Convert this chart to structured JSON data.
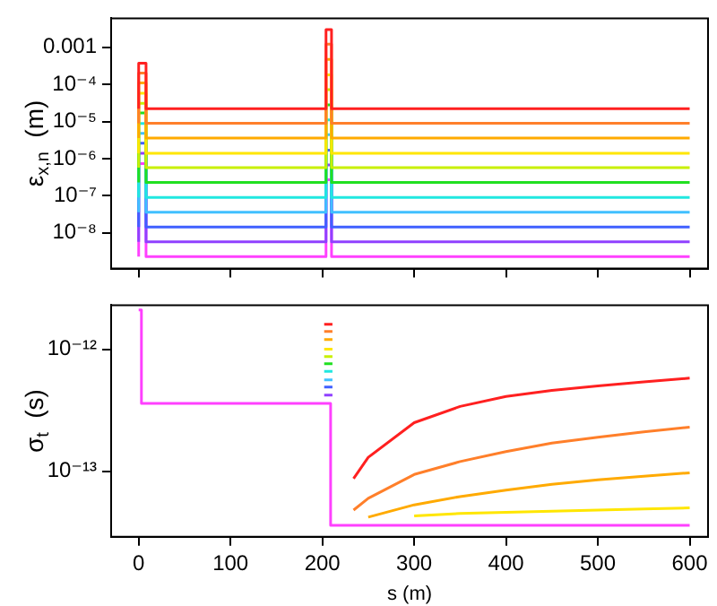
{
  "chart_data": [
    {
      "type": "line",
      "ylabel": "ε$_{x,n}$  (m)",
      "xlim": [
        -30,
        620
      ],
      "xticks": [
        0,
        100,
        200,
        300,
        400,
        500,
        600
      ],
      "ylim": [
        1.1e-09,
        0.006
      ],
      "log": "y",
      "tick_labels": "y",
      "grid": false,
      "legend": false,
      "marker": "none",
      "line_style": "solid",
      "yticks": [
        0.001,
        {
          "value": 0.0001,
          "label": "10⁻⁴"
        },
        {
          "value": 1e-05,
          "label": "10⁻⁵"
        },
        {
          "value": 1e-06,
          "label": "10⁻⁶"
        },
        {
          "value": 1e-07,
          "label": "10⁻⁷"
        },
        {
          "value": 1e-08,
          "label": "10⁻⁸"
        }
      ],
      "series": [
        {
          "color": "#ff2020",
          "x": [
            0,
            0,
            8,
            8,
            204,
            204,
            210,
            210,
            600
          ],
          "values": [
            2.2e-05,
            0.00037,
            0.00037,
            2.2e-05,
            2.2e-05,
            0.003,
            0.003,
            2.2e-05,
            2.2e-05
          ]
        },
        {
          "color": "#ff7f2a",
          "x": [
            0,
            0,
            8,
            8,
            204,
            204,
            210,
            210,
            600
          ],
          "values": [
            9e-06,
            0.0002,
            0.0002,
            9e-06,
            9e-06,
            0.0012,
            0.0012,
            9e-06,
            9e-06
          ]
        },
        {
          "color": "#ffaa00",
          "x": [
            0,
            0,
            8,
            8,
            204,
            204,
            210,
            210,
            600
          ],
          "values": [
            3.6e-06,
            0.00011,
            0.00011,
            3.6e-06,
            3.6e-06,
            0.00047,
            0.00047,
            3.6e-06,
            3.6e-06
          ]
        },
        {
          "color": "#ffe600",
          "x": [
            0,
            0,
            8,
            8,
            204,
            204,
            210,
            210,
            600
          ],
          "values": [
            1.4e-06,
            5.8e-05,
            5.8e-05,
            1.4e-06,
            1.4e-06,
            0.00018,
            0.00018,
            1.4e-06,
            1.4e-06
          ]
        },
        {
          "color": "#c8f000",
          "x": [
            0,
            0,
            8,
            8,
            204,
            204,
            210,
            210,
            600
          ],
          "values": [
            5.7e-07,
            3.1e-05,
            3.1e-05,
            5.7e-07,
            5.7e-07,
            7.2e-05,
            7.2e-05,
            5.7e-07,
            5.7e-07
          ]
        },
        {
          "color": "#20e020",
          "x": [
            0,
            0,
            8,
            8,
            204,
            204,
            210,
            210,
            600
          ],
          "values": [
            2.3e-07,
            1.7e-05,
            1.7e-05,
            2.3e-07,
            2.3e-07,
            2.8e-05,
            2.8e-05,
            2.3e-07,
            2.3e-07
          ]
        },
        {
          "color": "#20e8e0",
          "x": [
            0,
            0,
            8,
            8,
            204,
            204,
            210,
            210,
            600
          ],
          "values": [
            9e-08,
            8.9e-06,
            8.9e-06,
            9e-08,
            9e-08,
            1.1e-05,
            1.1e-05,
            9e-08,
            9e-08
          ]
        },
        {
          "color": "#40c0ff",
          "x": [
            0,
            0,
            8,
            8,
            204,
            204,
            210,
            210,
            600
          ],
          "values": [
            3.6e-08,
            4.8e-06,
            4.8e-06,
            3.6e-08,
            3.6e-08,
            4.4e-06,
            4.4e-06,
            3.6e-08,
            3.6e-08
          ]
        },
        {
          "color": "#4060ff",
          "x": [
            0,
            0,
            8,
            8,
            204,
            204,
            210,
            210,
            600
          ],
          "values": [
            1.45e-08,
            2.6e-06,
            2.6e-06,
            1.45e-08,
            1.45e-08,
            1.7e-06,
            1.7e-06,
            1.45e-08,
            1.45e-08
          ]
        },
        {
          "color": "#9040ff",
          "x": [
            0,
            0,
            8,
            8,
            204,
            204,
            210,
            210,
            600
          ],
          "values": [
            5.8e-09,
            1.4e-06,
            1.4e-06,
            5.8e-09,
            5.8e-09,
            6.8e-07,
            6.8e-07,
            5.8e-09,
            5.8e-09
          ]
        },
        {
          "color": "#ff40ff",
          "x": [
            0,
            0,
            8,
            8,
            204,
            204,
            210,
            210,
            600
          ],
          "values": [
            2.3e-09,
            7.4e-07,
            7.4e-07,
            2.3e-09,
            2.3e-09,
            2.7e-07,
            2.7e-07,
            2.3e-09,
            2.3e-09
          ]
        }
      ]
    },
    {
      "type": "line",
      "xlabel": "s (m)",
      "ylabel": "σ$_{t}$  (s)",
      "xlim": [
        -30,
        620
      ],
      "xticks": [
        0,
        100,
        200,
        300,
        400,
        500,
        600
      ],
      "ylim": [
        2.9e-14,
        2.3e-12
      ],
      "log": "y",
      "grid": false,
      "legend": false,
      "marker": "none",
      "line_style": "solid",
      "yticks": [
        {
          "value": 1e-12,
          "label": "10⁻¹²"
        },
        {
          "value": 1e-13,
          "label": "10⁻¹³"
        }
      ],
      "series": [
        {
          "color": "#ff2020",
          "x": [
            202,
            211,
            222,
            234,
            250,
            300,
            350,
            400,
            450,
            500,
            550,
            600
          ],
          "values": [
            1.6e-12,
            1.6e-12,
            null,
            8.7e-14,
            1.3e-13,
            2.5e-13,
            3.4e-13,
            4.1e-13,
            4.6e-13,
            5e-13,
            5.4e-13,
            5.8e-13
          ]
        },
        {
          "color": "#ff7f2a",
          "x": [
            202,
            211,
            222,
            234,
            250,
            300,
            350,
            400,
            450,
            500,
            550,
            600
          ],
          "values": [
            1.4e-12,
            1.4e-12,
            null,
            4.8e-14,
            6e-14,
            9.4e-14,
            1.2e-13,
            1.45e-13,
            1.7e-13,
            1.9e-13,
            2.1e-13,
            2.3e-13
          ]
        },
        {
          "color": "#ffaa00",
          "x": [
            202,
            211,
            222,
            250,
            300,
            350,
            400,
            450,
            500,
            550,
            600
          ],
          "values": [
            1.2e-12,
            1.2e-12,
            null,
            4.2e-14,
            5.3e-14,
            6.2e-14,
            7e-14,
            7.8e-14,
            8.5e-14,
            9.1e-14,
            9.7e-14
          ]
        },
        {
          "color": "#ffe600",
          "x": [
            202,
            211,
            222,
            300,
            350,
            400,
            450,
            500,
            550,
            600
          ],
          "values": [
            1e-12,
            1e-12,
            null,
            4.3e-14,
            4.5e-14,
            4.6e-14,
            4.7e-14,
            4.8e-14,
            4.9e-14,
            5e-14
          ]
        },
        {
          "color": "#c8f000",
          "x": [
            202,
            211
          ],
          "values": [
            8.7e-13,
            8.7e-13
          ]
        },
        {
          "color": "#20e020",
          "x": [
            202,
            211
          ],
          "values": [
            7.6e-13,
            7.6e-13
          ]
        },
        {
          "color": "#20e8e0",
          "x": [
            202,
            211
          ],
          "values": [
            6.6e-13,
            6.6e-13
          ]
        },
        {
          "color": "#40c0ff",
          "x": [
            202,
            211
          ],
          "values": [
            5.6e-13,
            5.6e-13
          ]
        },
        {
          "color": "#4060ff",
          "x": [
            202,
            211
          ],
          "values": [
            4.9e-13,
            4.9e-13
          ]
        },
        {
          "color": "#9040ff",
          "x": [
            202,
            211
          ],
          "values": [
            4.2e-13,
            4.2e-13
          ]
        },
        {
          "color": "#ff40ff",
          "x": [
            0,
            3,
            3,
            205,
            209,
            209,
            600
          ],
          "values": [
            2.1e-12,
            2.1e-12,
            3.6e-13,
            3.6e-13,
            3.6e-13,
            3.6e-14,
            3.6e-14
          ]
        }
      ]
    }
  ]
}
